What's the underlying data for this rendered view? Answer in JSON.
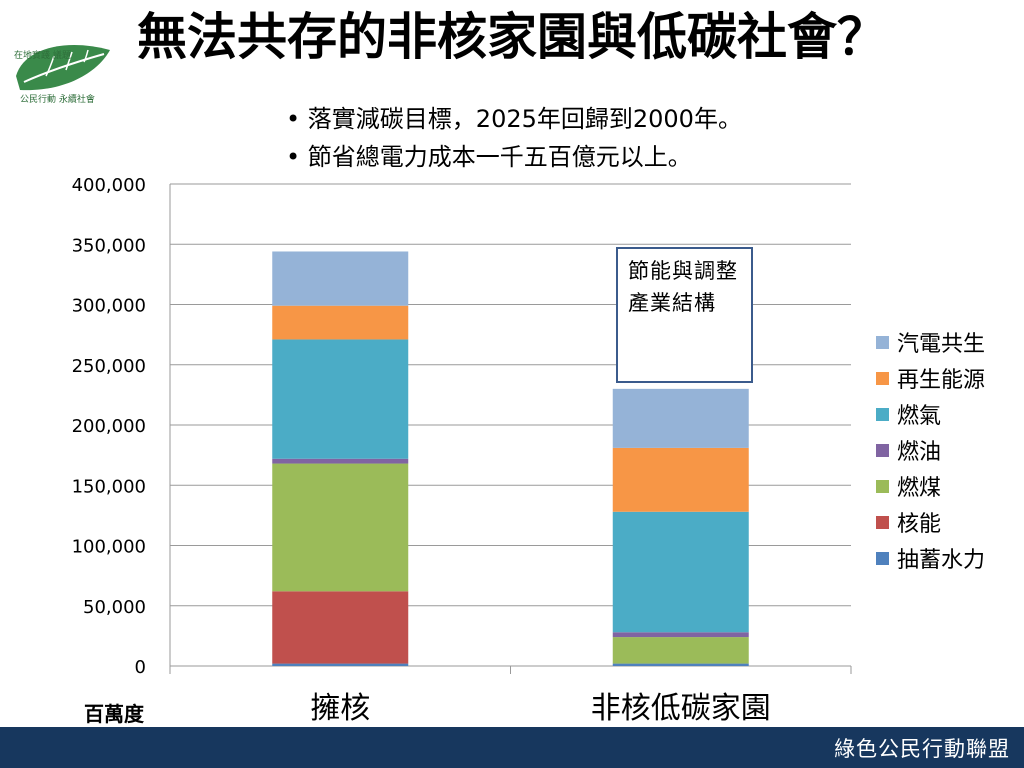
{
  "slide": {
    "title": "無法共存的非核家園與低碳社會？",
    "bullets": [
      "落實減碳目標，2025年回歸到2000年。",
      "節省總電力成本一千五百億元以上。"
    ],
    "footer": "綠色公民行動聯盟"
  },
  "logo": {
    "text_top": "在地實踐 議題",
    "text_bottom": "公民行動 永續社會"
  },
  "chart_data": {
    "type": "bar",
    "stacked": true,
    "categories": [
      "擁核",
      "非核低碳家園"
    ],
    "ylabel": "百萬度",
    "ylim": [
      0,
      400000
    ],
    "yticks": [
      0,
      50000,
      100000,
      150000,
      200000,
      250000,
      300000,
      350000,
      400000
    ],
    "ytick_labels": [
      "0",
      "50,000",
      "100,000",
      "150,000",
      "200,000",
      "250,000",
      "300,000",
      "350,000",
      "400,000"
    ],
    "grid": true,
    "legend_position": "right",
    "series": [
      {
        "name": "抽蓄水力",
        "color": "#4f81bd",
        "values": [
          2000,
          2000
        ]
      },
      {
        "name": "核能",
        "color": "#c0504d",
        "values": [
          60000,
          0
        ]
      },
      {
        "name": "燃煤",
        "color": "#9bbb59",
        "values": [
          106000,
          22000
        ]
      },
      {
        "name": "燃油",
        "color": "#8064a2",
        "values": [
          4000,
          4000
        ]
      },
      {
        "name": "燃氣",
        "color": "#4bacc6",
        "values": [
          99000,
          100000
        ]
      },
      {
        "name": "再生能源",
        "color": "#f79646",
        "values": [
          28000,
          53000
        ]
      },
      {
        "name": "汽電共生",
        "color": "#95b3d7",
        "values": [
          45000,
          49000
        ]
      }
    ],
    "annotation": "節能與調整產業結構"
  }
}
